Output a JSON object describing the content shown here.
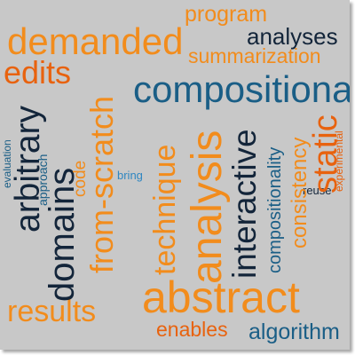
{
  "colors": {
    "background": "#c8c8c8",
    "orange": "#f28c1c",
    "dark_orange": "#e8620e",
    "dark_teal": "#13253a",
    "teal_blue": "#1a5e86",
    "light_blue": "#2e86c1"
  },
  "words": {
    "program": "program",
    "demanded": "demanded",
    "analyses": "analyses",
    "summarization": "summarization",
    "edits": "edits",
    "compositional": "compositional",
    "arbitrary": "arbitrary",
    "from_scratch": "from-scratch",
    "technique": "technique",
    "analysis": "analysis",
    "interactive": "interactive",
    "compositionality": "compositionality",
    "consistency": "consistency",
    "static": "static",
    "domains": "domains",
    "code": "code",
    "bring": "bring",
    "evaluation": "evaluation",
    "approach": "approach",
    "experimental": "experimental",
    "reuse": "reuse",
    "abstract": "abstract",
    "results": "results",
    "enables": "enables",
    "algorithm": "algorithm"
  }
}
